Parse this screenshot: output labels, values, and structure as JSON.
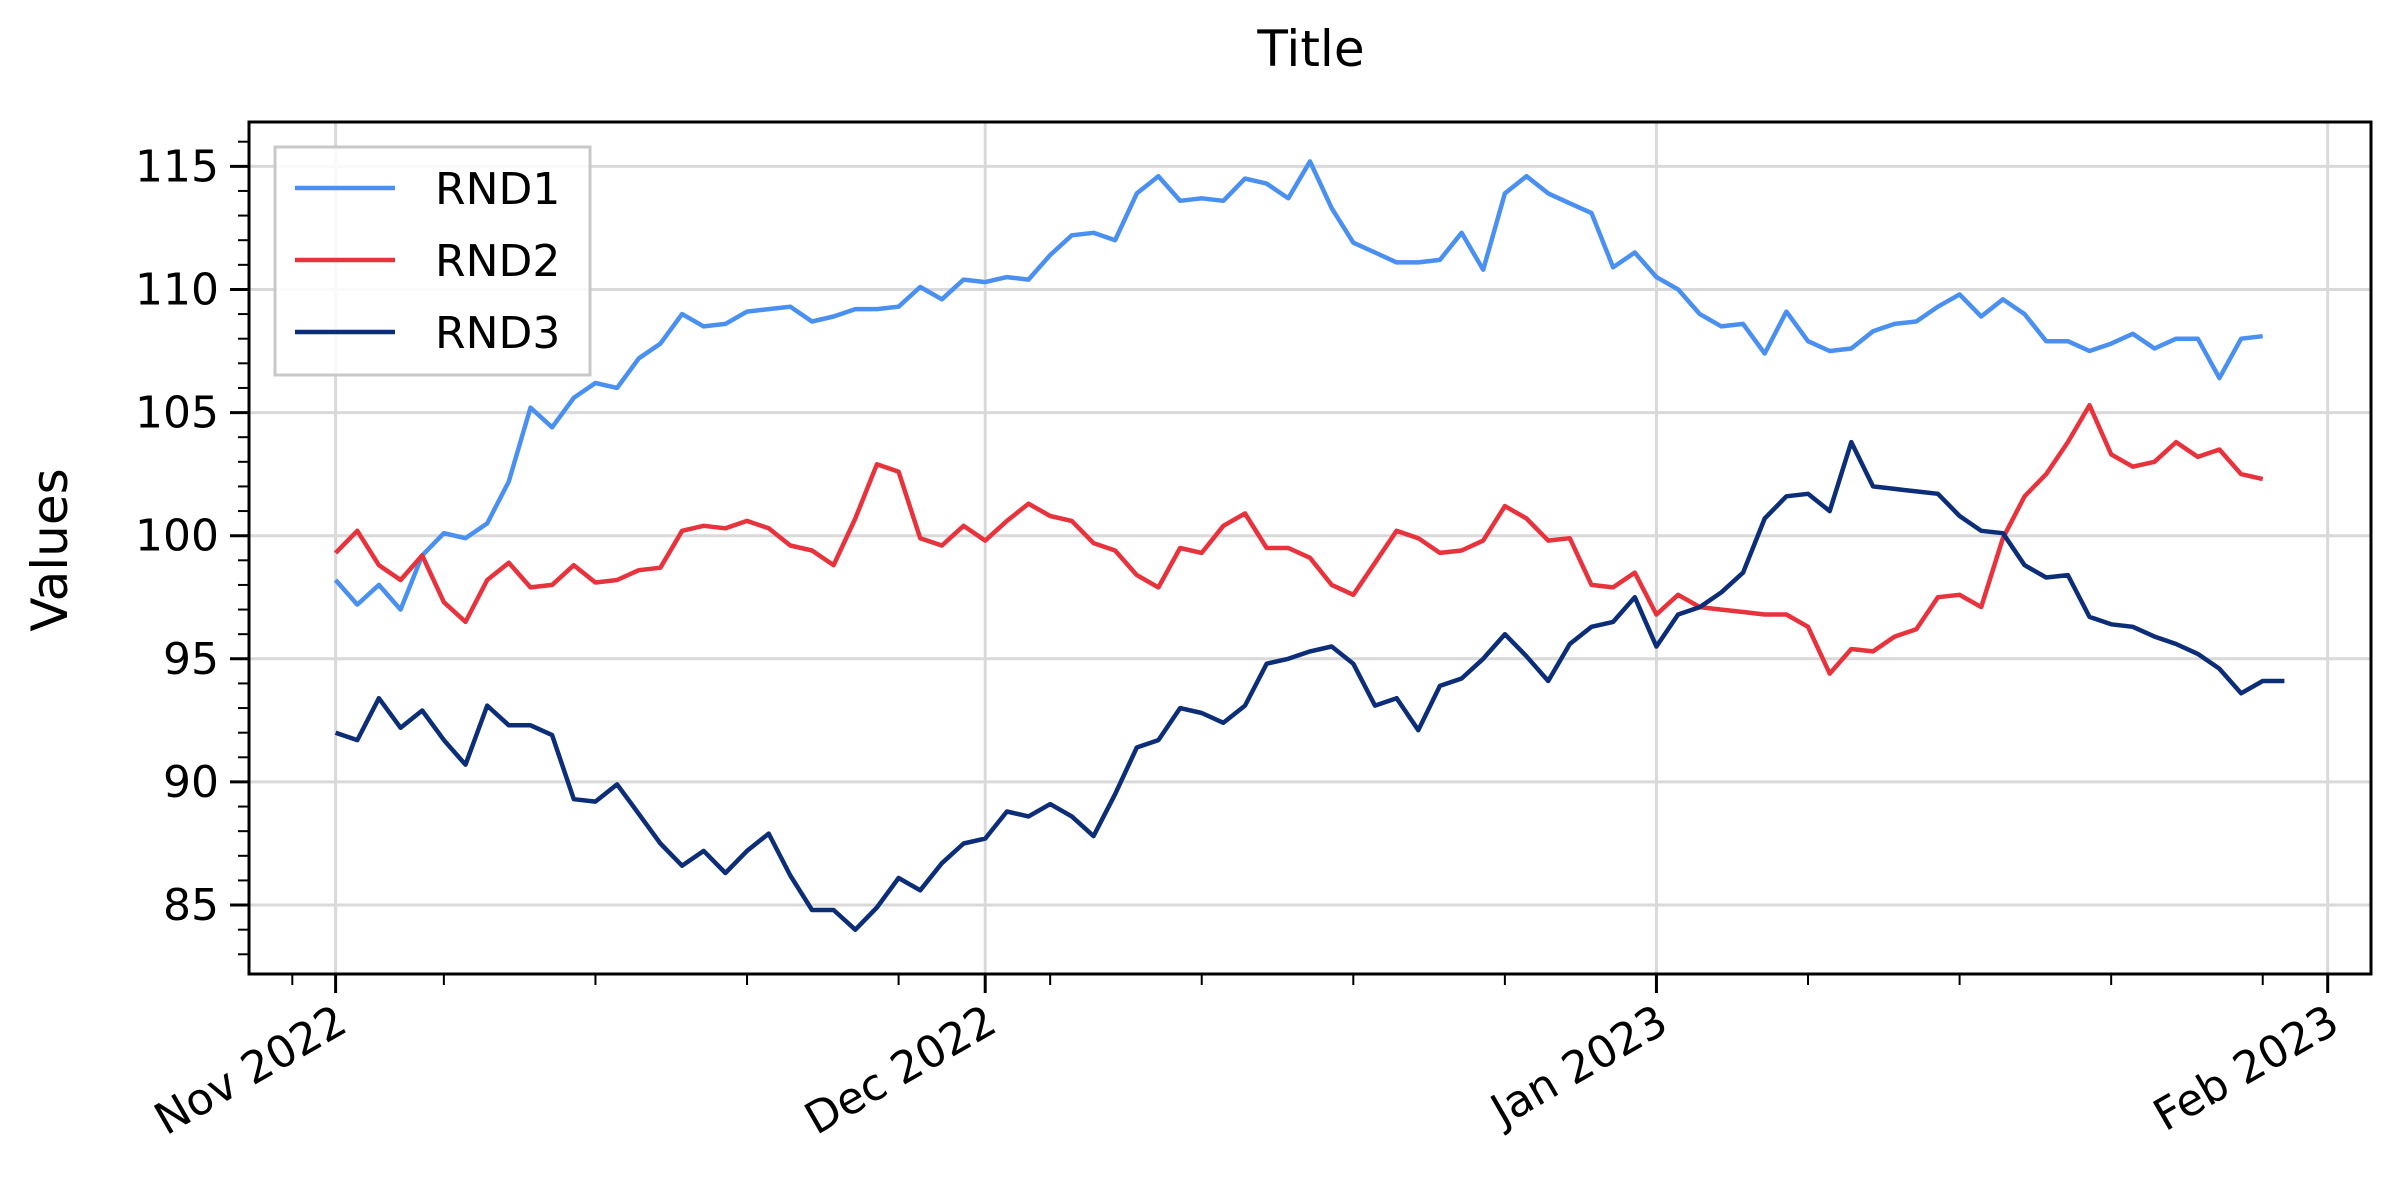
{
  "chart_data": {
    "type": "line",
    "title": "Title",
    "xlabel": "",
    "ylabel": "Values",
    "x_start": "2022-11-01",
    "x_step_days": 1,
    "xlim": [
      "2022-10-28",
      "2023-02-03"
    ],
    "ylim": [
      82.2,
      116.8
    ],
    "x_ticks": [
      {
        "date": "2022-11-01",
        "label": "Nov 2022"
      },
      {
        "date": "2022-12-01",
        "label": "Dec 2022"
      },
      {
        "date": "2023-01-01",
        "label": "Jan 2023"
      },
      {
        "date": "2023-02-01",
        "label": "Feb 2023"
      }
    ],
    "y_ticks": [
      85,
      90,
      95,
      100,
      105,
      110,
      115
    ],
    "grid": true,
    "legend_position": "top-left",
    "series": [
      {
        "name": "RND1",
        "color": "#4a90f0",
        "values": [
          98.2,
          97.2,
          98.0,
          97.0,
          99.2,
          100.1,
          99.9,
          100.5,
          102.2,
          105.2,
          104.4,
          105.6,
          106.2,
          106.0,
          107.2,
          107.8,
          109.0,
          108.5,
          108.6,
          109.1,
          109.2,
          109.3,
          108.7,
          108.9,
          109.2,
          109.2,
          109.3,
          110.1,
          109.6,
          110.4,
          110.3,
          110.5,
          110.4,
          111.4,
          112.2,
          112.3,
          112.0,
          113.9,
          114.6,
          113.6,
          113.7,
          113.6,
          114.5,
          114.3,
          113.7,
          115.2,
          113.3,
          111.9,
          111.5,
          111.1,
          111.1,
          111.2,
          112.3,
          110.8,
          113.9,
          114.6,
          113.9,
          113.5,
          113.1,
          110.9,
          111.5,
          110.5,
          110.0,
          109.0,
          108.5,
          108.6,
          107.4,
          109.1,
          107.9,
          107.5,
          107.6,
          108.3,
          108.6,
          108.7,
          109.3,
          109.8,
          108.9,
          109.6,
          109.0,
          107.9,
          107.9,
          107.5,
          107.8,
          108.2,
          107.6,
          108.0,
          108.0,
          106.4,
          108.0,
          108.1
        ]
      },
      {
        "name": "RND2",
        "color": "#e8323c",
        "values": [
          99.3,
          100.2,
          98.8,
          98.2,
          99.2,
          97.3,
          96.5,
          98.2,
          98.9,
          97.9,
          98.0,
          98.8,
          98.1,
          98.2,
          98.6,
          98.7,
          100.2,
          100.4,
          100.3,
          100.6,
          100.3,
          99.6,
          99.4,
          98.8,
          100.7,
          102.9,
          102.6,
          99.9,
          99.6,
          100.4,
          99.8,
          100.6,
          101.3,
          100.8,
          100.6,
          99.7,
          99.4,
          98.4,
          97.9,
          99.5,
          99.3,
          100.4,
          100.9,
          99.5,
          99.5,
          99.1,
          98.0,
          97.6,
          98.9,
          100.2,
          99.9,
          99.3,
          99.4,
          99.8,
          101.2,
          100.7,
          99.8,
          99.9,
          98.0,
          97.9,
          98.5,
          96.8,
          97.6,
          97.1,
          97.0,
          96.9,
          96.8,
          96.8,
          96.3,
          94.4,
          95.4,
          95.3,
          95.9,
          96.2,
          97.5,
          97.6,
          97.1,
          99.9,
          101.6,
          102.5,
          103.8,
          105.3,
          103.3,
          102.8,
          103.0,
          103.8,
          103.2,
          103.5,
          102.5,
          102.3
        ]
      },
      {
        "name": "RND3",
        "color": "#0c2d78",
        "values": [
          92.0,
          91.7,
          93.4,
          92.2,
          92.9,
          91.7,
          90.7,
          93.1,
          92.3,
          92.3,
          91.9,
          89.3,
          89.2,
          89.9,
          88.7,
          87.5,
          86.6,
          87.2,
          86.3,
          87.2,
          87.9,
          86.2,
          84.8,
          84.8,
          84.0,
          84.9,
          86.1,
          85.6,
          86.7,
          87.5,
          87.7,
          88.8,
          88.6,
          89.1,
          88.6,
          87.8,
          89.5,
          91.4,
          91.7,
          93.0,
          92.8,
          92.4,
          93.1,
          94.8,
          95.0,
          95.3,
          95.5,
          94.8,
          93.1,
          93.4,
          92.1,
          93.9,
          94.2,
          95.0,
          96.0,
          95.1,
          94.1,
          95.6,
          96.3,
          96.5,
          97.5,
          95.5,
          96.8,
          97.1,
          97.7,
          98.5,
          100.7,
          101.6,
          101.7,
          101.0,
          103.8,
          102.0,
          101.9,
          101.8,
          101.7,
          100.8,
          100.2,
          100.1,
          98.8,
          98.3,
          98.4,
          96.7,
          96.4,
          96.3,
          95.9,
          95.6,
          95.2,
          94.6,
          93.6,
          94.1,
          94.1
        ]
      }
    ]
  }
}
